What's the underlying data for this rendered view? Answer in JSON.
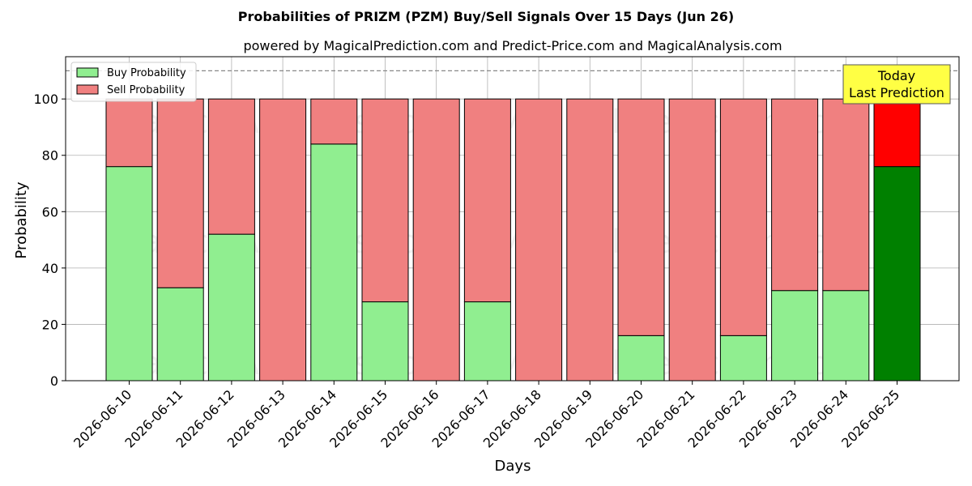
{
  "chart_data": {
    "type": "bar",
    "stacked": true,
    "title": "Probabilities of PRIZM (PZM) Buy/Sell Signals Over 15 Days (Jun 26)",
    "subtitle": "powered by MagicalPrediction.com and Predict-Price.com and MagicalAnalysis.com",
    "xlabel": "Days",
    "ylabel": "Probability",
    "ylim": [
      0,
      115
    ],
    "yticks": [
      0,
      20,
      40,
      60,
      80,
      100
    ],
    "grid": true,
    "legend_position": "top-left",
    "reference_line": 110,
    "categories": [
      "2026-06-10",
      "2026-06-11",
      "2026-06-12",
      "2026-06-13",
      "2026-06-14",
      "2026-06-15",
      "2026-06-16",
      "2026-06-17",
      "2026-06-18",
      "2026-06-19",
      "2026-06-20",
      "2026-06-21",
      "2026-06-22",
      "2026-06-23",
      "2026-06-24",
      "2026-06-25"
    ],
    "series": [
      {
        "name": "Buy Probability",
        "color": "#90ee90",
        "highlight_color": "#008000",
        "values": [
          76,
          33,
          52,
          0,
          84,
          28,
          0,
          28,
          0,
          0,
          16,
          0,
          16,
          32,
          32,
          76
        ]
      },
      {
        "name": "Sell Probability",
        "color": "#f08080",
        "highlight_color": "#ff0000",
        "values": [
          24,
          67,
          48,
          100,
          16,
          72,
          100,
          72,
          100,
          100,
          84,
          100,
          84,
          68,
          68,
          24
        ]
      }
    ],
    "highlight_index": 15,
    "annotation": {
      "line1": "Today",
      "line2": "Last Prediction",
      "color": "#ffff44"
    },
    "watermarks": [
      "MagicalAnalysis.com",
      "MagicalPrediction.com"
    ]
  }
}
